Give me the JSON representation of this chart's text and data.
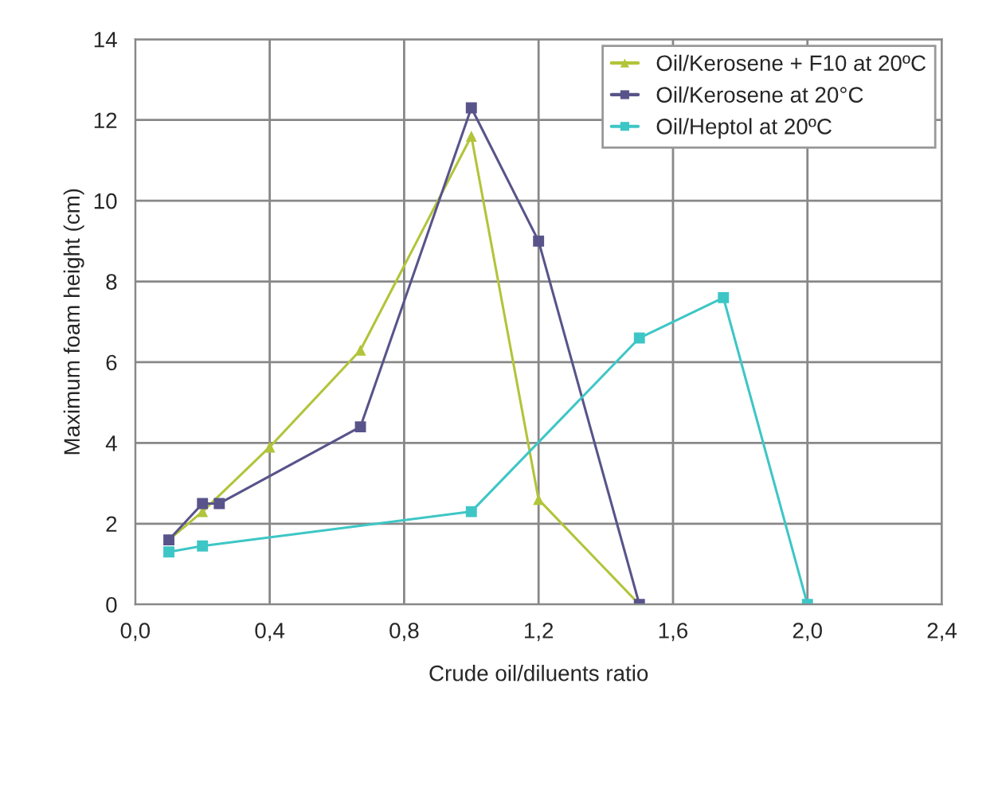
{
  "chart_data": {
    "type": "line",
    "xlabel": "Crude oil/diluents ratio",
    "ylabel": "Maximum foam height (cm)",
    "xlim": [
      0,
      2.4
    ],
    "ylim": [
      0,
      14
    ],
    "xticks": [
      {
        "value": 0,
        "label": "0,0"
      },
      {
        "value": 0.4,
        "label": "0,4"
      },
      {
        "value": 0.8,
        "label": "0,8"
      },
      {
        "value": 1.2,
        "label": "1,2"
      },
      {
        "value": 1.6,
        "label": "1,6"
      },
      {
        "value": 2.0,
        "label": "2,0"
      },
      {
        "value": 2.4,
        "label": "2,4"
      }
    ],
    "yticks": [
      0,
      2,
      4,
      6,
      8,
      10,
      12,
      14
    ],
    "grid": true,
    "legend": "top right",
    "line_style": "solid",
    "series": [
      {
        "name": "Oil/Kerosene + F10 at 20ºC",
        "color": "#b2c43a",
        "marker": "triangle",
        "x": [
          0.1,
          0.2,
          0.4,
          0.67,
          1.0,
          1.2,
          1.5
        ],
        "values": [
          1.6,
          2.3,
          3.9,
          6.3,
          11.6,
          2.6,
          0
        ]
      },
      {
        "name": "Oil/Kerosene at 20°C",
        "color": "#58548a",
        "marker": "square",
        "x": [
          0.1,
          0.2,
          0.25,
          0.67,
          1.0,
          1.2,
          1.5
        ],
        "values": [
          1.6,
          2.5,
          2.5,
          4.4,
          12.3,
          9.0,
          0
        ]
      },
      {
        "name": "Oil/Heptol at 20ºC",
        "color": "#3ec6c6",
        "marker": "square",
        "x": [
          0.1,
          0.2,
          1.0,
          1.5,
          1.75,
          2.0
        ],
        "values": [
          1.3,
          1.45,
          2.3,
          6.6,
          7.6,
          0
        ]
      }
    ]
  }
}
